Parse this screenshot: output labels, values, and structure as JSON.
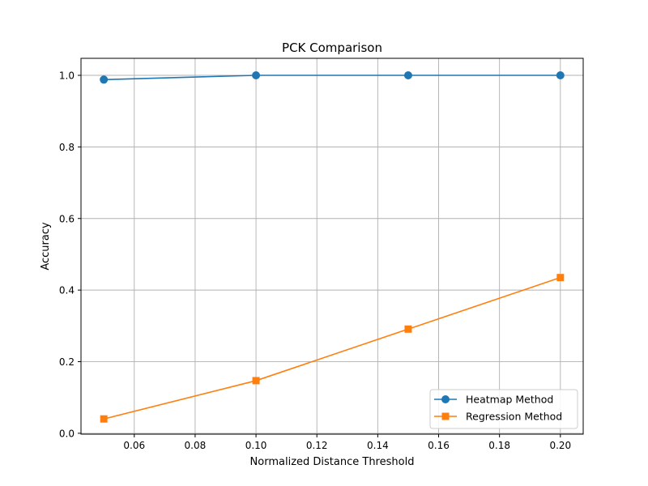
{
  "chart_data": {
    "type": "line",
    "title": "PCK Comparison",
    "xlabel": "Normalized Distance Threshold",
    "ylabel": "Accuracy",
    "xlim": [
      0.0425,
      0.2075
    ],
    "ylim": [
      -0.0025,
      1.0475
    ],
    "x_ticks": [
      0.06,
      0.08,
      0.1,
      0.12,
      0.14,
      0.16,
      0.18,
      0.2
    ],
    "x_tick_labels": [
      "0.06",
      "0.08",
      "0.10",
      "0.12",
      "0.14",
      "0.16",
      "0.18",
      "0.20"
    ],
    "y_ticks": [
      0.0,
      0.2,
      0.4,
      0.6,
      0.8,
      1.0
    ],
    "y_tick_labels": [
      "0.0",
      "0.2",
      "0.4",
      "0.6",
      "0.8",
      "1.0"
    ],
    "grid": true,
    "legend_position": "lower-right",
    "x": [
      0.05,
      0.1,
      0.15,
      0.2
    ],
    "series": [
      {
        "name": "Heatmap Method",
        "values": [
          0.988,
          1.0,
          1.0,
          1.0
        ],
        "color": "#1f77b4",
        "marker": "circle"
      },
      {
        "name": "Regression Method",
        "values": [
          0.04,
          0.147,
          0.291,
          0.435
        ],
        "color": "#ff7f0e",
        "marker": "square"
      }
    ]
  }
}
